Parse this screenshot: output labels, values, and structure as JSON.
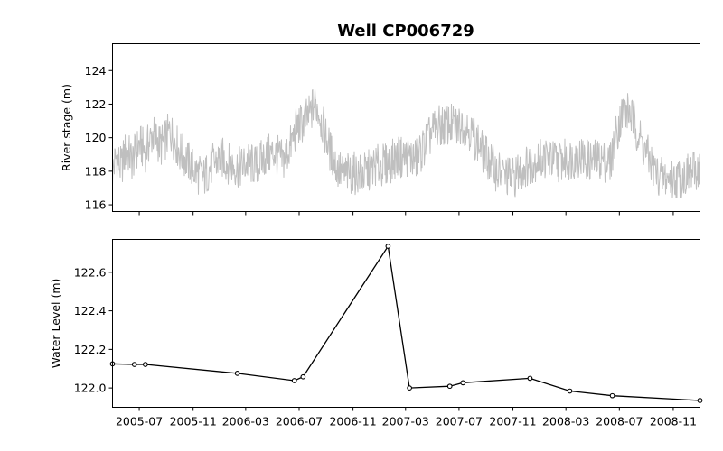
{
  "chart_data": {
    "title": "Well CP006729",
    "x_ticks": [
      "2005-07",
      "2005-11",
      "2006-03",
      "2006-07",
      "2006-11",
      "2007-03",
      "2007-07",
      "2007-11",
      "2008-03",
      "2008-07",
      "2008-11"
    ],
    "xlim": [
      "2005-05-01",
      "2009-01-01"
    ],
    "colors": {
      "river": "#bfbfbf",
      "water": "#000000",
      "frame": "#000000"
    },
    "panels": [
      {
        "type": "line",
        "ylabel": "River stage (m)",
        "ylim": [
          115.6,
          125.6
        ],
        "yticks": [
          116,
          118,
          120,
          122,
          124
        ],
        "series": [
          {
            "points": [
              [
                "2005-05-01",
                118.0
              ],
              [
                "2005-05-10",
                118.9
              ],
              [
                "2005-05-20",
                118.2
              ],
              [
                "2005-06-01",
                119.3
              ],
              [
                "2005-06-15",
                118.6
              ],
              [
                "2005-07-01",
                119.6
              ],
              [
                "2005-07-15",
                119.2
              ],
              [
                "2005-08-01",
                120.2
              ],
              [
                "2005-08-20",
                119.5
              ],
              [
                "2005-09-10",
                120.4
              ],
              [
                "2005-10-01",
                119.2
              ],
              [
                "2005-10-20",
                118.6
              ],
              [
                "2005-11-05",
                118.0
              ],
              [
                "2005-11-25",
                117.6
              ],
              [
                "2005-12-15",
                118.4
              ],
              [
                "2006-01-05",
                118.8
              ],
              [
                "2006-01-25",
                118.4
              ],
              [
                "2006-02-15",
                118.2
              ],
              [
                "2006-03-05",
                118.5
              ],
              [
                "2006-03-25",
                118.3
              ],
              [
                "2006-04-15",
                118.9
              ],
              [
                "2006-05-05",
                119.1
              ],
              [
                "2006-05-25",
                118.6
              ],
              [
                "2006-06-10",
                119.4
              ],
              [
                "2006-06-25",
                120.6
              ],
              [
                "2006-07-10",
                120.9
              ],
              [
                "2006-07-25",
                121.3
              ],
              [
                "2006-08-05",
                122.1
              ],
              [
                "2006-08-15",
                121.6
              ],
              [
                "2006-08-25",
                120.6
              ],
              [
                "2006-09-10",
                119.2
              ],
              [
                "2006-09-25",
                118.2
              ],
              [
                "2006-10-10",
                117.8
              ],
              [
                "2006-11-01",
                117.9
              ],
              [
                "2006-11-25",
                117.8
              ],
              [
                "2006-12-20",
                118.3
              ],
              [
                "2007-01-15",
                118.4
              ],
              [
                "2007-02-10",
                118.8
              ],
              [
                "2007-03-05",
                118.9
              ],
              [
                "2007-03-25",
                118.7
              ],
              [
                "2007-04-15",
                119.6
              ],
              [
                "2007-05-05",
                120.5
              ],
              [
                "2007-05-20",
                120.7
              ],
              [
                "2007-06-10",
                120.8
              ],
              [
                "2007-06-25",
                120.6
              ],
              [
                "2007-07-10",
                120.9
              ],
              [
                "2007-07-25",
                120.5
              ],
              [
                "2007-08-10",
                119.8
              ],
              [
                "2007-08-25",
                119.1
              ],
              [
                "2007-09-10",
                118.6
              ],
              [
                "2007-09-25",
                118.0
              ],
              [
                "2007-10-10",
                117.8
              ],
              [
                "2007-11-01",
                117.6
              ],
              [
                "2007-11-25",
                118.2
              ],
              [
                "2007-12-20",
                118.6
              ],
              [
                "2008-01-15",
                118.8
              ],
              [
                "2008-02-10",
                118.6
              ],
              [
                "2008-03-05",
                118.7
              ],
              [
                "2008-04-01",
                118.9
              ],
              [
                "2008-04-25",
                118.6
              ],
              [
                "2008-05-20",
                118.7
              ],
              [
                "2008-06-10",
                118.5
              ],
              [
                "2008-06-25",
                120.4
              ],
              [
                "2008-07-10",
                121.6
              ],
              [
                "2008-07-25",
                121.5
              ],
              [
                "2008-08-10",
                120.5
              ],
              [
                "2008-08-25",
                119.4
              ],
              [
                "2008-09-10",
                118.6
              ],
              [
                "2008-09-25",
                117.8
              ],
              [
                "2008-10-10",
                117.6
              ],
              [
                "2008-11-01",
                117.5
              ],
              [
                "2008-11-25",
                117.7
              ],
              [
                "2008-12-15",
                117.9
              ],
              [
                "2009-01-01",
                118.2
              ]
            ]
          }
        ]
      },
      {
        "type": "line",
        "ylabel": "Water Level (m)",
        "ylim": [
          121.9,
          122.77
        ],
        "yticks": [
          122.0,
          122.2,
          122.4,
          122.6
        ],
        "series": [
          {
            "markers": true,
            "points": [
              [
                "2005-05-01",
                122.125
              ],
              [
                "2005-06-20",
                122.122
              ],
              [
                "2005-07-15",
                122.122
              ],
              [
                "2006-02-10",
                122.076
              ],
              [
                "2006-06-20",
                122.038
              ],
              [
                "2006-07-10",
                122.058
              ],
              [
                "2007-01-20",
                122.735
              ],
              [
                "2007-03-10",
                122.0
              ],
              [
                "2007-06-10",
                122.009
              ],
              [
                "2007-07-10",
                122.027
              ],
              [
                "2007-12-10",
                122.05
              ],
              [
                "2008-03-10",
                121.984
              ],
              [
                "2008-06-15",
                121.96
              ],
              [
                "2009-01-01",
                121.935
              ]
            ]
          }
        ]
      }
    ]
  }
}
